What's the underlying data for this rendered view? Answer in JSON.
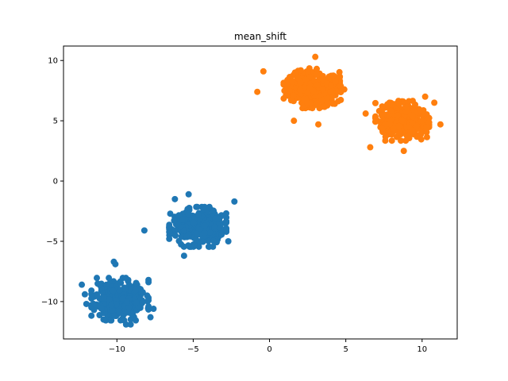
{
  "chart_data": {
    "type": "scatter",
    "title": "mean_shift",
    "xlabel": "",
    "ylabel": "",
    "xlim": [
      -13.5,
      12.3
    ],
    "ylim": [
      -13.1,
      11.2
    ],
    "xticks": [
      -10,
      -5,
      0,
      5,
      10
    ],
    "yticks": [
      -10,
      -5,
      0,
      5,
      10
    ],
    "xtick_labels": [
      "−10",
      "−5",
      "0",
      "5",
      "10"
    ],
    "ytick_labels": [
      "−10",
      "−5",
      "0",
      "5",
      "10"
    ],
    "grid": false,
    "series": [
      {
        "color": "#1f77b4",
        "clusters": [
          {
            "center": [
              -9.8,
              -9.8
            ],
            "spread": [
              0.85,
              0.8
            ],
            "count": 330,
            "seed": 11
          },
          {
            "center": [
              -4.7,
              -3.8
            ],
            "spread": [
              0.85,
              0.75
            ],
            "count": 330,
            "seed": 23
          }
        ],
        "outliers": [
          [
            -12.3,
            -8.6
          ],
          [
            -10.2,
            -6.7
          ],
          [
            -10.1,
            -6.9
          ],
          [
            -8.2,
            -4.1
          ],
          [
            -5.3,
            -1.1
          ],
          [
            -2.3,
            -1.7
          ],
          [
            -12.1,
            -9.4
          ],
          [
            -6.2,
            -1.5
          ],
          [
            -2.7,
            -5.0
          ],
          [
            -5.6,
            -6.2
          ],
          [
            -9.1,
            -11.9
          ],
          [
            -9.4,
            -11.9
          ],
          [
            -12.0,
            -10.2
          ],
          [
            -7.6,
            -10.6
          ],
          [
            -7.8,
            -11.3
          ]
        ]
      },
      {
        "color": "#ff7f0e",
        "clusters": [
          {
            "center": [
              2.8,
              7.7
            ],
            "spread": [
              0.85,
              0.75
            ],
            "count": 330,
            "seed": 37
          },
          {
            "center": [
              8.7,
              5.0
            ],
            "spread": [
              0.8,
              0.75
            ],
            "count": 330,
            "seed": 51
          }
        ],
        "outliers": [
          [
            -0.8,
            7.4
          ],
          [
            -0.4,
            9.1
          ],
          [
            3.0,
            10.3
          ],
          [
            3.2,
            4.7
          ],
          [
            1.6,
            5.0
          ],
          [
            4.9,
            7.6
          ],
          [
            4.6,
            8.6
          ],
          [
            6.6,
            2.8
          ],
          [
            8.8,
            2.5
          ],
          [
            10.2,
            7.0
          ],
          [
            11.2,
            4.7
          ],
          [
            6.3,
            5.6
          ],
          [
            10.8,
            6.5
          ]
        ]
      }
    ]
  }
}
